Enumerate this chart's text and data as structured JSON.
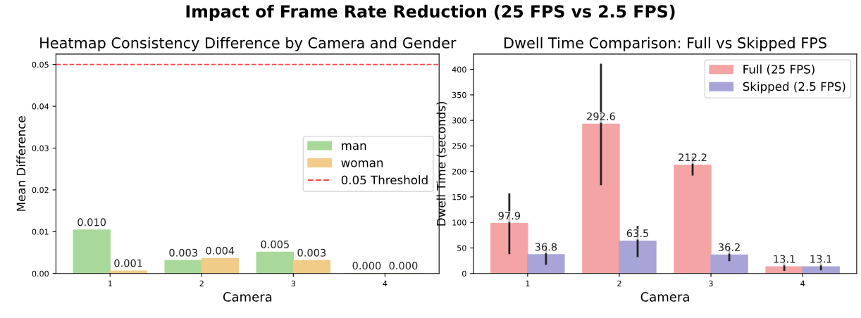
{
  "chart_data": [
    {
      "type": "bar",
      "title": "Heatmap Consistency Difference by Camera and Gender",
      "xlabel": "Camera",
      "ylabel": "Mean Difference",
      "annotations": [
        "Impact of Frame Rate Reduction (25 FPS vs 2.5 FPS)"
      ],
      "categories": [
        "1",
        "2",
        "3",
        "4"
      ],
      "series": [
        {
          "name": "man",
          "color": "#a8d89a",
          "values": [
            0.0104,
            0.0031,
            0.0051,
            0.0
          ],
          "value_labels": [
            "0.010",
            "0.003",
            "0.005",
            "0.000"
          ]
        },
        {
          "name": "woman",
          "color": "#f0cc88",
          "values": [
            0.0006,
            0.0036,
            0.0031,
            0.0
          ],
          "value_labels": [
            "0.001",
            "0.004",
            "0.003",
            "0.000"
          ]
        }
      ],
      "ylim": [
        0,
        0.0525
      ],
      "yticks": [
        {
          "value": 0,
          "label": "0.00"
        },
        {
          "value": 0.01,
          "label": "0.01"
        },
        {
          "value": 0.02,
          "label": "0.02"
        },
        {
          "value": 0.03,
          "label": "0.03"
        },
        {
          "value": 0.04,
          "label": "0.04"
        },
        {
          "value": 0.05,
          "label": "0.05"
        }
      ],
      "ref_lines": [
        {
          "axis": "y",
          "value": 0.05,
          "label": "0.05 Threshold",
          "color": "#ff4444",
          "line_style": "dashed"
        }
      ],
      "legend": "right",
      "grid": false
    },
    {
      "type": "bar",
      "title": "Dwell Time Comparison: Full vs Skipped FPS",
      "xlabel": "Camera",
      "ylabel": "Dwell Time (seconds)",
      "categories": [
        "1",
        "2",
        "3",
        "4"
      ],
      "series": [
        {
          "name": "Full (25 FPS)",
          "color": "#f4a4a4",
          "values": [
            97.9,
            292.6,
            212.2,
            13.1
          ],
          "errors": [
            [
              38,
              157
            ],
            [
              173,
              411
            ],
            [
              192,
              230
            ],
            [
              5,
              20
            ]
          ]
        },
        {
          "name": "Skipped (2.5 FPS)",
          "color": "#a8a4d8",
          "values": [
            36.8,
            63.5,
            36.2,
            13.1
          ],
          "errors": [
            [
              17,
              57
            ],
            [
              32,
              93
            ],
            [
              24,
              50
            ],
            [
              6,
              20
            ]
          ]
        }
      ],
      "data_labels": true,
      "ylim": [
        0,
        430
      ],
      "yticks": [
        0,
        50,
        100,
        150,
        200,
        250,
        300,
        350,
        400
      ],
      "legend": "top right",
      "grid": false
    }
  ]
}
